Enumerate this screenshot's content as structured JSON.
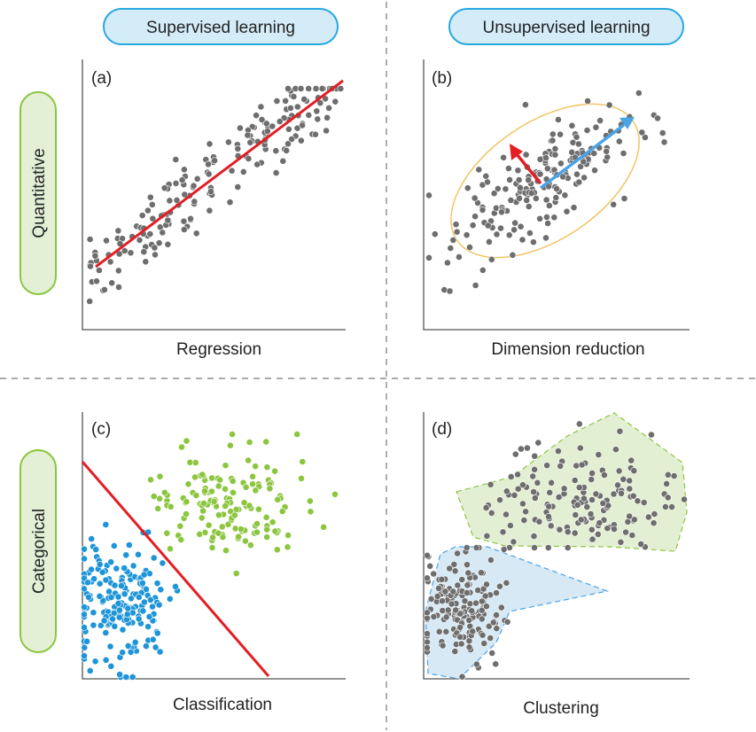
{
  "column_headers": {
    "supervised": "Supervised learning",
    "unsupervised": "Unsupervised learning"
  },
  "row_headers": {
    "quantitative": "Quantitative",
    "categorical": "Categorical"
  },
  "panels": {
    "a": {
      "label": "(a)",
      "caption": "Regression"
    },
    "b": {
      "label": "(b)",
      "caption": "Dimension reduction"
    },
    "c": {
      "label": "(c)",
      "caption": "Classification"
    },
    "d": {
      "label": "(d)",
      "caption": "Clustering"
    }
  },
  "colors": {
    "point_gray": "#6e6e6e",
    "point_blue": "#1f95d8",
    "point_green": "#8cc63f",
    "line_red": "#e31e24",
    "arrow_blue": "#4aa3e6",
    "ellipse": "#f2c462",
    "pill_blue_fill": "#d4ecf8",
    "pill_blue_stroke": "#29a8e0",
    "pill_green_fill": "#e4f0d6",
    "pill_green_stroke": "#8cc63f",
    "hull_green_fill": "#e3efd3",
    "hull_green_stroke": "#8cc63f",
    "hull_blue_fill": "#d6e9f5",
    "hull_blue_stroke": "#4aa3e6"
  }
}
